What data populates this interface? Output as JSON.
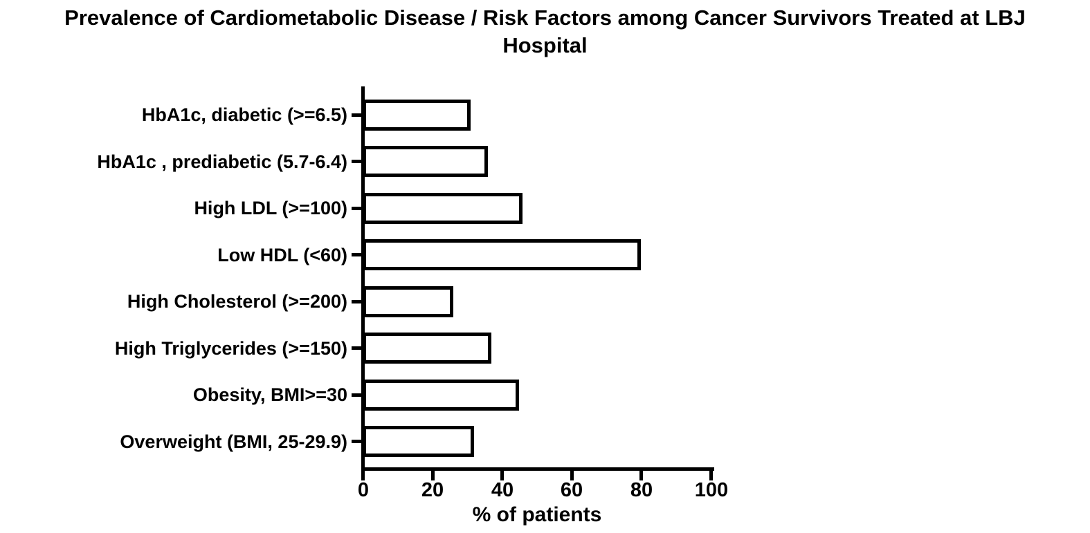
{
  "title_lines": [
    "Prevalence of Cardiometabolic Disease / Risk Factors among Cancer Survivors Treated at LBJ",
    "Hospital"
  ],
  "colors": {
    "background": "#ffffff",
    "bar_fill": "#ffffff",
    "bar_stroke": "#000000",
    "axis": "#000000",
    "text": "#000000"
  },
  "chart_data": {
    "type": "bar",
    "orientation": "horizontal",
    "title": "Prevalence of Cardiometabolic Disease / Risk Factors among Cancer Survivors Treated at LBJ Hospital",
    "categories": [
      "HbA1c, diabetic (>=6.5)",
      "HbA1c , prediabetic (5.7-6.4)",
      "High LDL (>=100)",
      "Low HDL (<60)",
      "High Cholesterol (>=200)",
      "High Triglycerides (>=150)",
      "Obesity, BMI>=30",
      "Overweight (BMI, 25-29.9)"
    ],
    "values": [
      31,
      36,
      46,
      80,
      26,
      37,
      45,
      32
    ],
    "xlabel": "% of patients",
    "ylabel": "",
    "xlim": [
      0,
      100
    ],
    "xticks": [
      0,
      20,
      40,
      60,
      80,
      100
    ],
    "grid": false,
    "legend": "none"
  }
}
